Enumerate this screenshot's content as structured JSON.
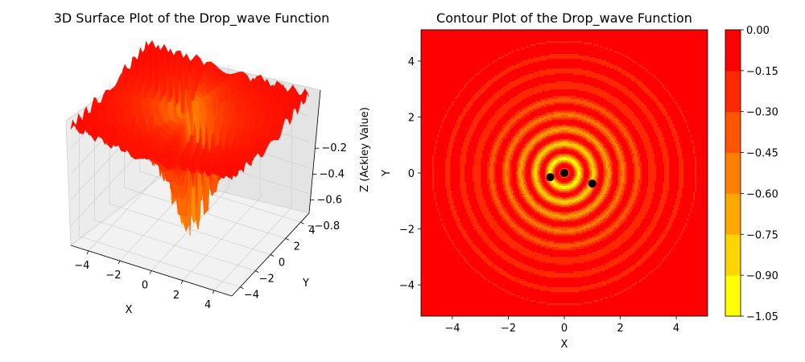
{
  "chart_data": [
    {
      "type": "surface3d",
      "title": "3D Surface Plot of the Drop_wave Function",
      "xlabel": "X",
      "ylabel": "Y",
      "zlabel": "Z (Ackley Value)",
      "xlim": [
        -5.12,
        5.12
      ],
      "ylim": [
        -5.12,
        5.12
      ],
      "zlim": [
        -0.95,
        0.0
      ],
      "xticks": [
        "−4",
        "−2",
        "0",
        "2",
        "4"
      ],
      "yticks": [
        "−4",
        "−2",
        "0",
        "2",
        "4"
      ],
      "zticks": [
        "−0.2",
        "−0.4",
        "−0.6",
        "−0.8"
      ],
      "colormap": "autumn",
      "colors": {
        "low": "#ffff00",
        "high": "#ff0000"
      }
    },
    {
      "type": "contour",
      "title": "Contour Plot of the Drop_wave Function",
      "xlabel": "X",
      "ylabel": "Y",
      "xlim": [
        -5.12,
        5.12
      ],
      "ylim": [
        -5.12,
        5.12
      ],
      "xticks": [
        "−4",
        "−2",
        "0",
        "2",
        "4"
      ],
      "yticks": [
        "4",
        "2",
        "0",
        "−2",
        "−4"
      ],
      "colorbar": {
        "levels": [
          -1.05,
          -0.9,
          -0.75,
          -0.6,
          -0.45,
          -0.3,
          -0.15,
          0.0
        ],
        "ticks": [
          "0.00",
          "−0.15",
          "−0.30",
          "−0.45",
          "−0.60",
          "−0.75",
          "−0.90",
          "−1.05"
        ],
        "colors": [
          "#ffff00",
          "#ffd400",
          "#ffa800",
          "#ff7e00",
          "#ff5400",
          "#ff2800",
          "#ff0000"
        ]
      },
      "points": [
        {
          "x": 0.0,
          "y": 0.0
        },
        {
          "x": -0.5,
          "y": -0.15
        },
        {
          "x": 1.0,
          "y": -0.38
        }
      ],
      "marker_color": "#000000"
    }
  ]
}
